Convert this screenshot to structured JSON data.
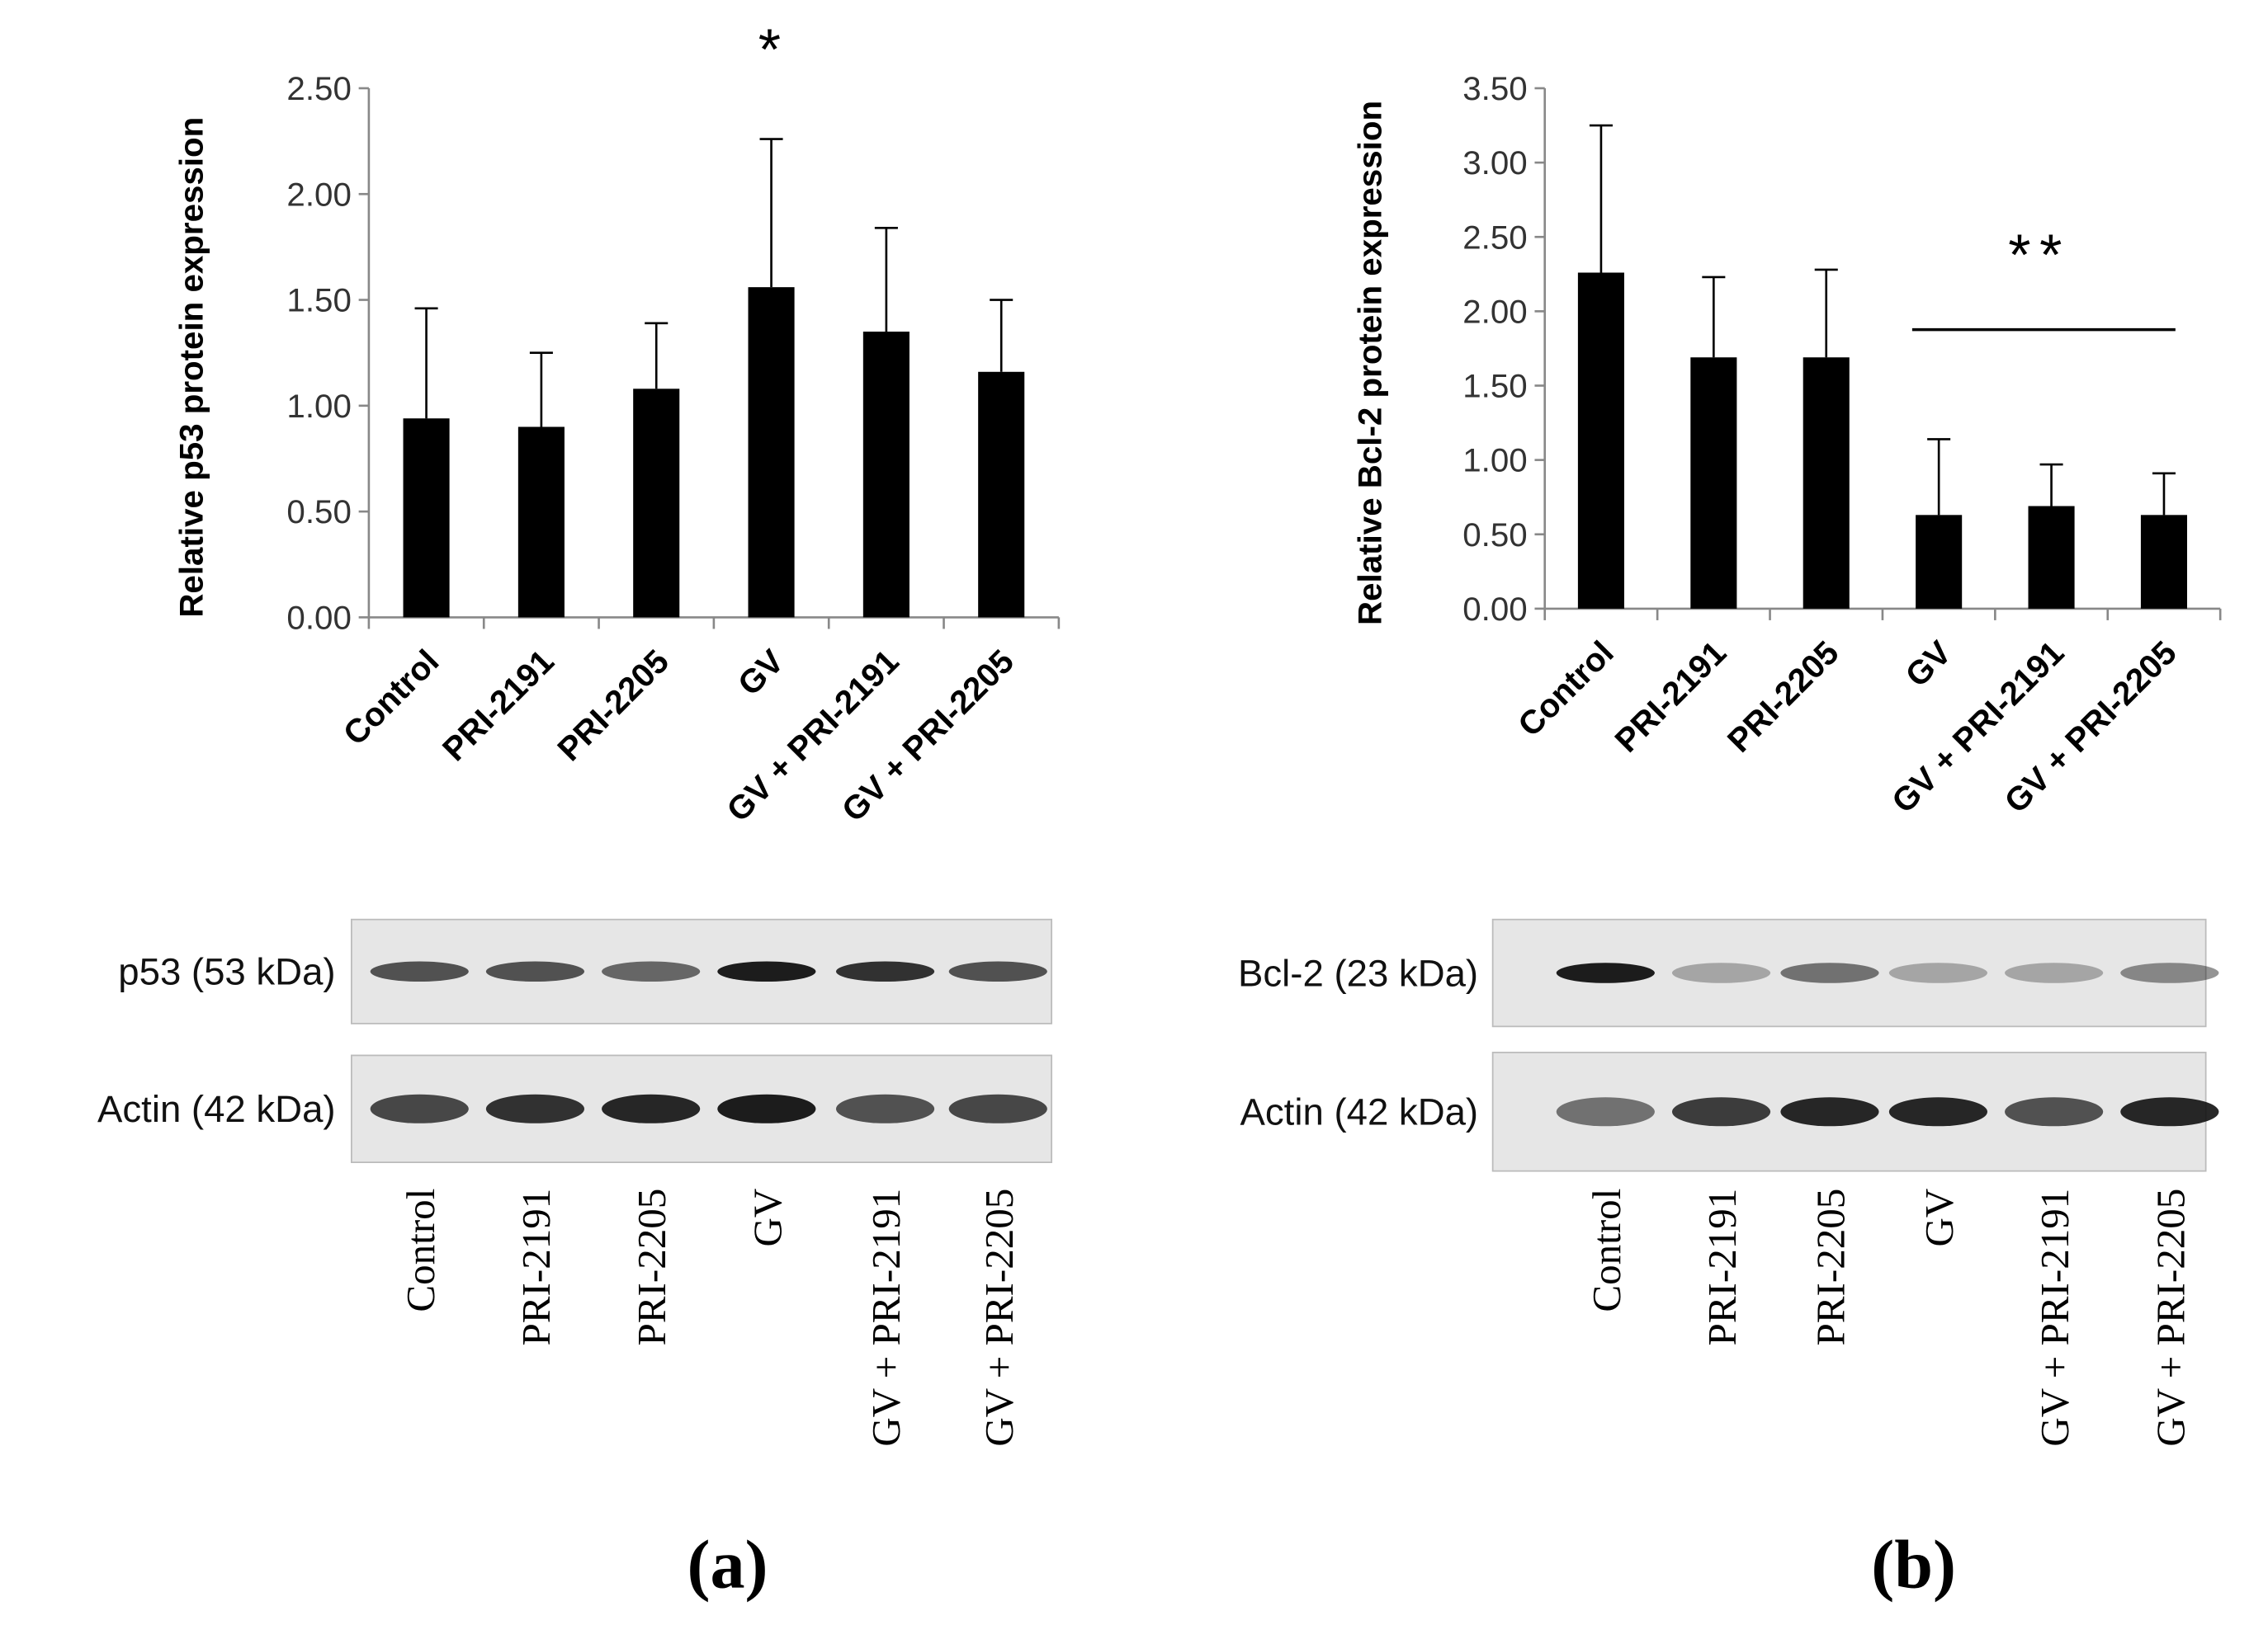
{
  "chart_data": [
    {
      "type": "bar",
      "y_label": "Relative p53 protein expression",
      "categories": [
        "Control",
        "PRI-2191",
        "PRI-2205",
        "GV",
        "GV + PRI-2191",
        "GV + PRI-2205"
      ],
      "values": [
        0.94,
        0.9,
        1.08,
        1.56,
        1.35,
        1.16
      ],
      "errors": [
        0.52,
        0.35,
        0.31,
        0.7,
        0.49,
        0.34
      ],
      "color": "#000000",
      "ylim": [
        0,
        2.5
      ],
      "yticks": [
        {
          "value": 0,
          "label": "0.00"
        },
        {
          "value": 0.5,
          "label": "0.50"
        },
        {
          "value": 1,
          "label": "1.00"
        },
        {
          "value": 1.5,
          "label": "1.50"
        },
        {
          "value": 2,
          "label": "2.00"
        },
        {
          "value": 2.5,
          "label": "2.50"
        }
      ],
      "annotation": "*"
    },
    {
      "type": "bar",
      "y_label": "Relative Bcl-2 protein expression",
      "categories": [
        "Control",
        "PRI-2191",
        "PRI-2205",
        "GV",
        "GV + PRI-2191",
        "GV + PRI-2205"
      ],
      "values": [
        2.26,
        1.69,
        1.69,
        0.63,
        0.69,
        0.63
      ],
      "errors": [
        0.99,
        0.54,
        0.59,
        0.51,
        0.28,
        0.28
      ],
      "color": "#000000",
      "ylim": [
        0,
        3.5
      ],
      "yticks": [
        {
          "value": 0,
          "label": "0.00"
        },
        {
          "value": 0.5,
          "label": "0.50"
        },
        {
          "value": 1,
          "label": "1.00"
        },
        {
          "value": 1.5,
          "label": "1.50"
        },
        {
          "value": 2,
          "label": "2.00"
        },
        {
          "value": 2.5,
          "label": "2.50"
        },
        {
          "value": 3,
          "label": "3.00"
        },
        {
          "value": 3.5,
          "label": "3.50"
        }
      ],
      "annotation": "**"
    }
  ],
  "blots": [
    {
      "bands": [
        "p53 (53 kDa)",
        "Actin (42 kDa)"
      ],
      "lanes": [
        "Control",
        "PRI-2191",
        "PRI-2205",
        "GV",
        "GV + PRI-2191",
        "GV + PRI-2205"
      ]
    },
    {
      "bands": [
        "Bcl-2 (23 kDa)",
        "Actin (42 kDa)"
      ],
      "lanes": [
        "Control",
        "PRI-2191",
        "PRI-2205",
        "GV",
        "GV + PRI-2191",
        "GV + PRI-2205"
      ]
    }
  ],
  "panel_labels": [
    "(a)",
    "(b)"
  ]
}
